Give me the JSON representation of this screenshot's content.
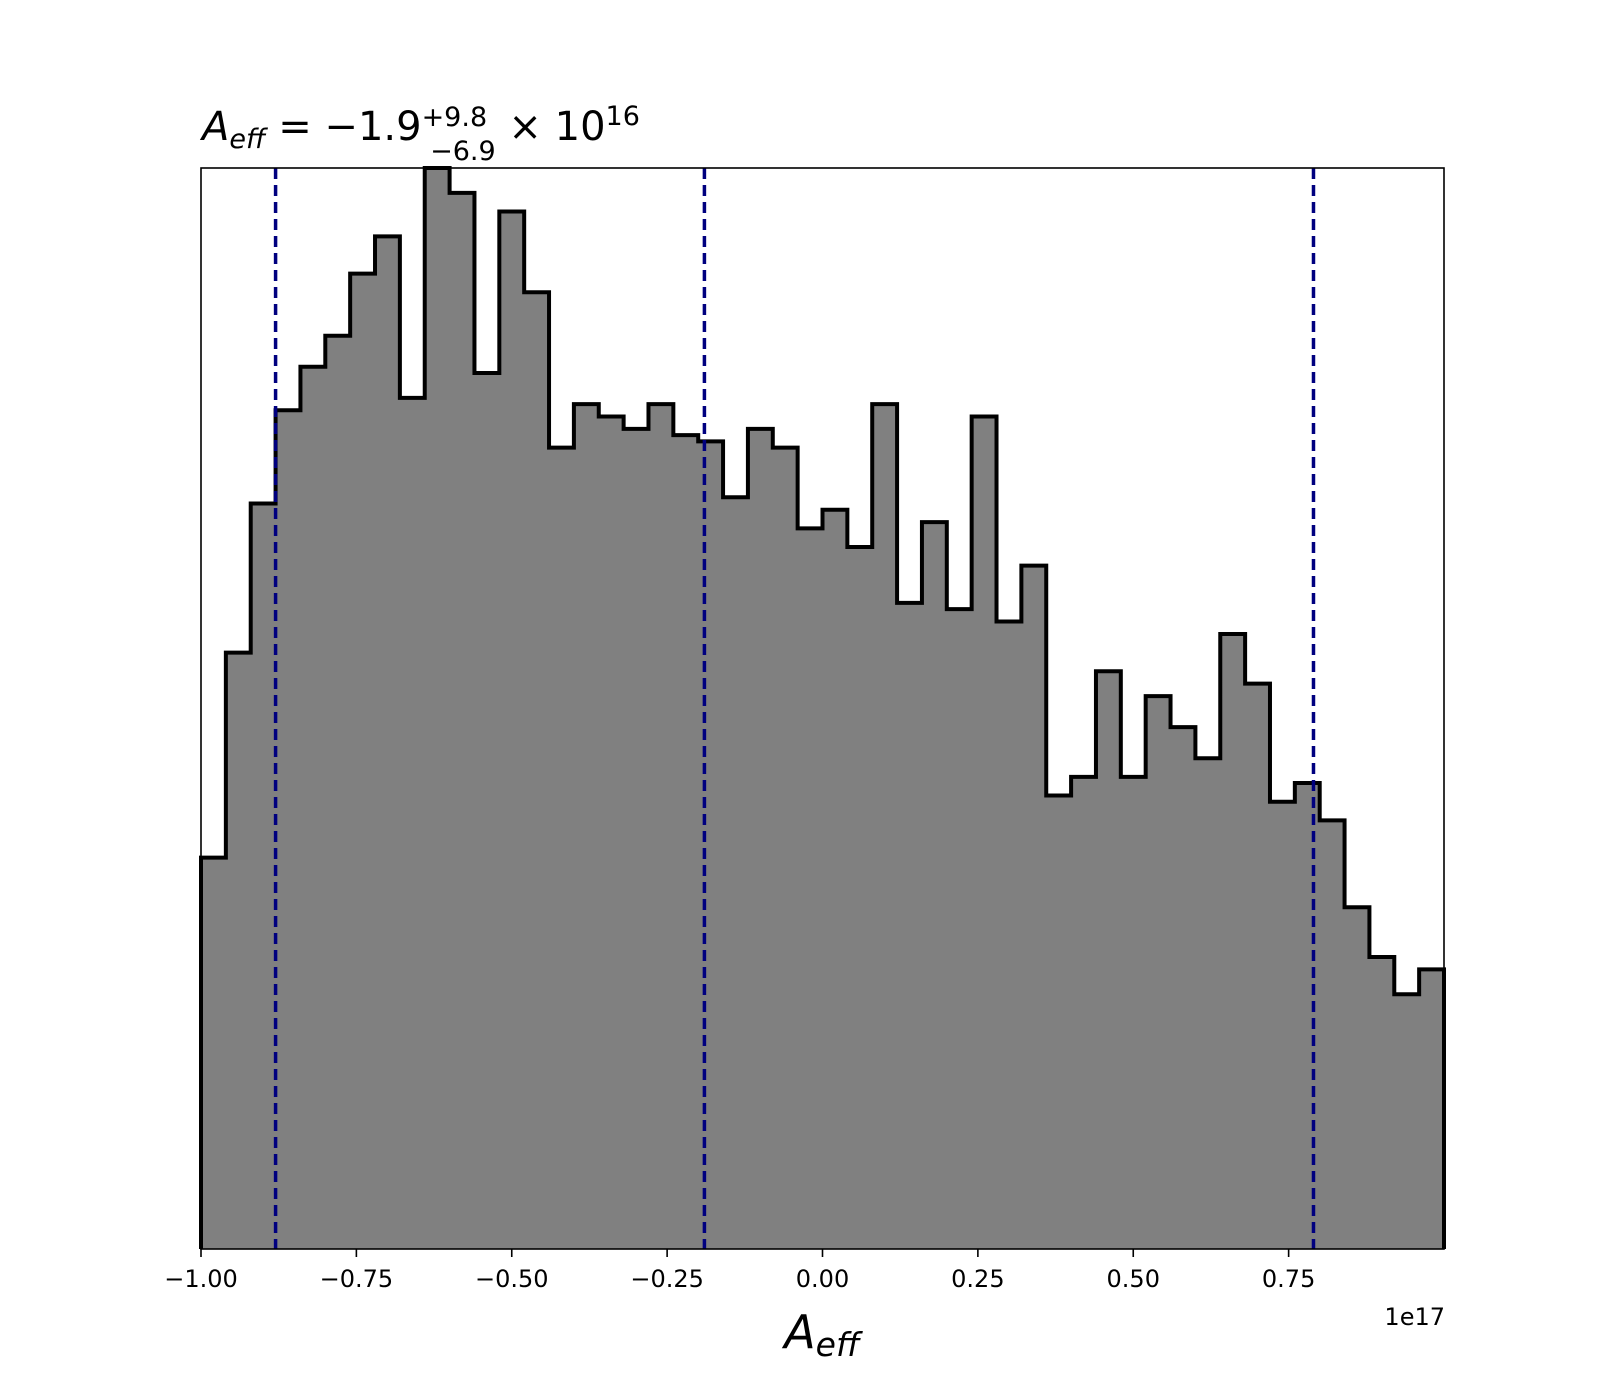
{
  "chart_data": {
    "type": "histogram",
    "title": {
      "symbol": "A",
      "symbol_sub": "eff",
      "equals": " = −1.9",
      "sup": "+9.8",
      "sub": "−6.9",
      "times": " × 10",
      "exp": "16"
    },
    "xlabel": {
      "symbol": "A",
      "sub": "eff"
    },
    "x_offset_label": "1e17",
    "xlim": [
      -1.0,
      1.0
    ],
    "ylim": [
      0,
      87
    ],
    "bin_edges_start": -1.0,
    "bin_width": 0.04,
    "counts": [
      31.5,
      48,
      60,
      67.5,
      71,
      73.5,
      78.5,
      81.5,
      68.5,
      87,
      85,
      70.5,
      83.5,
      77,
      64.5,
      68,
      67,
      66,
      68,
      65.5,
      65,
      60.5,
      66,
      64.5,
      58,
      59.5,
      56.5,
      68,
      52,
      58.5,
      51.5,
      67,
      50.5,
      55,
      36.5,
      38,
      46.5,
      38,
      44.5,
      42,
      39.5,
      49.5,
      45.5,
      36,
      37.5,
      34.5,
      27.5,
      23.5,
      20.5,
      22.5
    ],
    "fill_color": "#808080",
    "edge_color": "#000000",
    "quantile_lines": [
      -0.88,
      -0.19,
      0.79
    ],
    "quantile_line_color": "#00007f",
    "xticks": [
      -1.0,
      -0.75,
      -0.5,
      -0.25,
      0.0,
      0.25,
      0.5,
      0.75
    ],
    "xtick_labels": [
      "−1.00",
      "−0.75",
      "−0.50",
      "−0.25",
      "0.00",
      "0.25",
      "0.50",
      "0.75"
    ],
    "grid": false,
    "legend": "none"
  }
}
